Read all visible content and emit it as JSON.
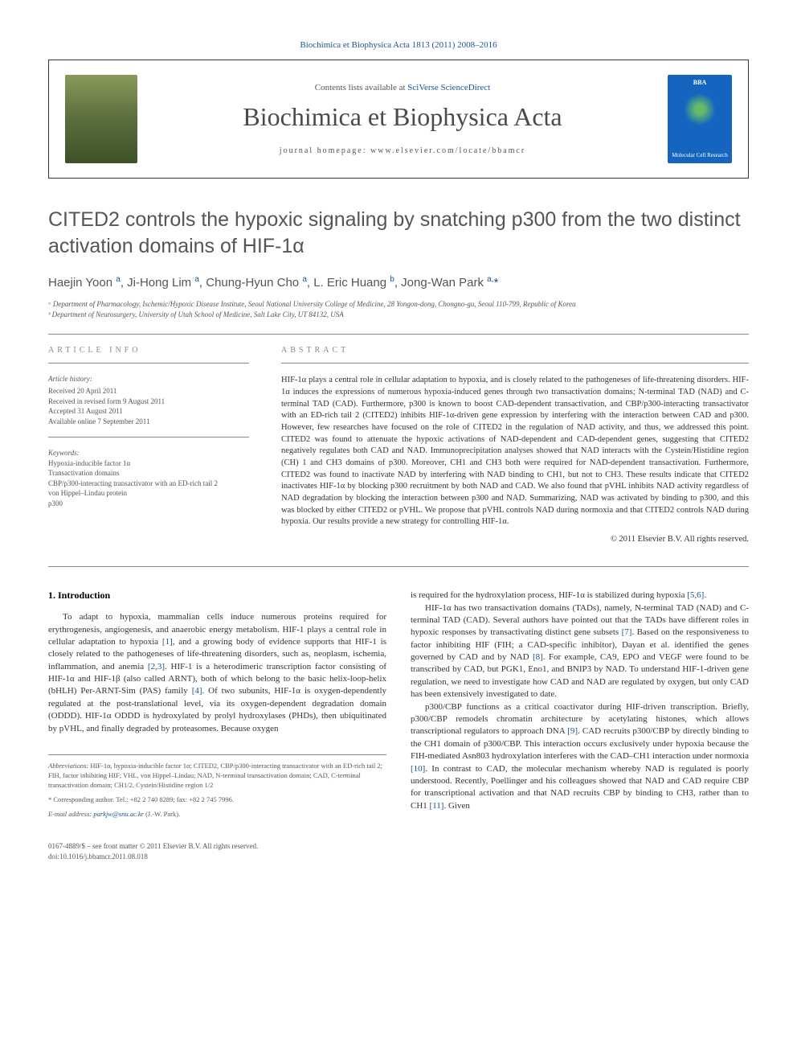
{
  "top_link": "Biochimica et Biophysica Acta 1813 (2011) 2008–2016",
  "header": {
    "contents_prefix": "Contents lists available at ",
    "contents_link": "SciVerse ScienceDirect",
    "journal_name": "Biochimica et Biophysica Acta",
    "homepage": "journal homepage: www.elsevier.com/locate/bbamcr",
    "cover_top": "BBA",
    "cover_label": "Molecular Cell Research"
  },
  "title": "CITED2 controls the hypoxic signaling by snatching p300 from the two distinct activation domains of HIF-1α",
  "authors_html": "Haejin Yoon <sup>a</sup>, Ji-Hong Lim <sup>a</sup>, Chung-Hyun Cho <sup>a</sup>, L. Eric Huang <sup>b</sup>, Jong-Wan Park <sup>a,</sup><span class='star'>*</span>",
  "affiliations": [
    "ᵃ Department of Pharmacology, Ischemic/Hypoxic Disease Institute, Seoul National University College of Medicine, 28 Yongon-dong, Chongno-gu, Seoul 110-799, Republic of Korea",
    "ᵇ Department of Neurosurgery, University of Utah School of Medicine, Salt Lake City, UT 84132, USA"
  ],
  "article_info": {
    "heading": "ARTICLE INFO",
    "history_label": "Article history:",
    "history": [
      "Received 20 April 2011",
      "Received in revised form 9 August 2011",
      "Accepted 31 August 2011",
      "Available online 7 September 2011"
    ],
    "keywords_label": "Keywords:",
    "keywords": [
      "Hypoxia-inducible factor 1α",
      "Transactivation domains",
      "CBP/p300-interacting transactivator with an ED-rich tail 2",
      "von Hippel–Lindau protein",
      "p300"
    ]
  },
  "abstract": {
    "heading": "ABSTRACT",
    "text": "HIF-1α plays a central role in cellular adaptation to hypoxia, and is closely related to the pathogeneses of life-threatening disorders. HIF-1α induces the expressions of numerous hypoxia-induced genes through two transactivation domains; N-terminal TAD (NAD) and C-terminal TAD (CAD). Furthermore, p300 is known to boost CAD-dependent transactivation, and CBP/p300-interacting transactivator with an ED-rich tail 2 (CITED2) inhibits HIF-1α-driven gene expression by interfering with the interaction between CAD and p300. However, few researches have focused on the role of CITED2 in the regulation of NAD activity, and thus, we addressed this point. CITED2 was found to attenuate the hypoxic activations of NAD-dependent and CAD-dependent genes, suggesting that CITED2 negatively regulates both CAD and NAD. Immunoprecipitation analyses showed that NAD interacts with the Cystein/Histidine region (CH) 1 and CH3 domains of p300. Moreover, CH1 and CH3 both were required for NAD-dependent transactivation. Furthermore, CITED2 was found to inactivate NAD by interfering with NAD binding to CH1, but not to CH3. These results indicate that CITED2 inactivates HIF-1α by blocking p300 recruitment by both NAD and CAD. We also found that pVHL inhibits NAD activity regardless of NAD degradation by blocking the interaction between p300 and NAD. Summarizing, NAD was activated by binding to p300, and this was blocked by either CITED2 or pVHL. We propose that pVHL controls NAD during normoxia and that CITED2 controls NAD during hypoxia. Our results provide a new strategy for controlling HIF-1α.",
    "copyright": "© 2011 Elsevier B.V. All rights reserved."
  },
  "intro": {
    "heading": "1. Introduction",
    "para1_pre": "To adapt to hypoxia, mammalian cells induce numerous proteins required for erythrogenesis, angiogenesis, and anaerobic energy metabolism. HIF-1 plays a central role in cellular adaptation to hypoxia ",
    "ref1": "[1]",
    "para1_mid": ", and a growing body of evidence supports that HIF-1 is closely related to the pathogeneses of life-threatening disorders, such as, neoplasm, ischemia, inflammation, and anemia ",
    "ref23": "[2,3]",
    "para1_post": ". HIF-1 is a heterodimeric transcription factor consisting of HIF-1α and HIF-1β (also called ARNT), both of which belong to the basic helix-loop-helix (bHLH) Per-ARNT-Sim (PAS) family ",
    "ref4": "[4]",
    "para1_end": ". Of two subunits, HIF-1α is oxygen-dependently regulated at the post-translational level, via its oxygen-dependent degradation domain (ODDD). HIF-1α ODDD is hydroxylated by prolyl hydroxylases (PHDs), then ubiquitinated by pVHL, and finally degraded by proteasomes. Because oxygen",
    "col2_top_pre": "is required for the hydroxylation process, HIF-1α is stabilized during hypoxia ",
    "ref56": "[5,6]",
    "col2_top_end": ".",
    "para2_pre": "HIF-1α has two transactivation domains (TADs), namely, N-terminal TAD (NAD) and C-terminal TAD (CAD). Several authors have pointed out that the TADs have different roles in hypoxic responses by transactivating distinct gene subsets ",
    "ref7": "[7]",
    "para2_mid": ". Based on the responsiveness to factor inhibiting HIF (FIH; a CAD-specific inhibitor), Dayan et al. identified the genes governed by CAD and by NAD ",
    "ref8": "[8]",
    "para2_end": ". For example, CA9, EPO and VEGF were found to be transcribed by CAD, but PGK1, Eno1, and BNIP3 by NAD. To understand HIF-1-driven gene regulation, we need to investigate how CAD and NAD are regulated by oxygen, but only CAD has been extensively investigated to date.",
    "para3_pre": "p300/CBP functions as a critical coactivator during HIF-driven transcription. Briefly, p300/CBP remodels chromatin architecture by acetylating histones, which allows transcriptional regulators to approach DNA ",
    "ref9": "[9]",
    "para3_mid": ". CAD recruits p300/CBP by directly binding to the CH1 domain of p300/CBP. This interaction occurs exclusively under hypoxia because the FIH-mediated Asn803 hydroxylation interferes with the CAD–CH1 interaction under normoxia ",
    "ref10": "[10]",
    "para3_mid2": ". In contrast to CAD, the molecular mechanism whereby NAD is regulated is poorly understood. Recently, Poellinger and his colleagues showed that NAD and CAD require CBP for transcriptional activation and that NAD recruits CBP by binding to CH3, rather than to CH1 ",
    "ref11": "[11]",
    "para3_end": ". Given"
  },
  "footer": {
    "abbreviations_label": "Abbreviations:",
    "abbreviations": " HIF-1α, hypoxia-inducible factor 1α; CITED2, CBP/p300-interacting transactivator with an ED-rich tail 2; FIH, factor inhibiting HIF; VHL, von Hippel–Lindau; NAD, N-terminal transactivation domain; CAD, C-terminal transactivation domain; CH1/2, Cystein/Histidine region 1/2",
    "corresponding": "* Corresponding author. Tel.: +82 2 740 8289; fax: +82 2 745 7996.",
    "email_label": "E-mail address: ",
    "email": "parkjw@snu.ac.kr",
    "email_suffix": " (J.-W. Park).",
    "issn": "0167-4889/$ – see front matter © 2011 Elsevier B.V. All rights reserved.",
    "doi": "doi:10.1016/j.bbamcr.2011.08.018"
  }
}
